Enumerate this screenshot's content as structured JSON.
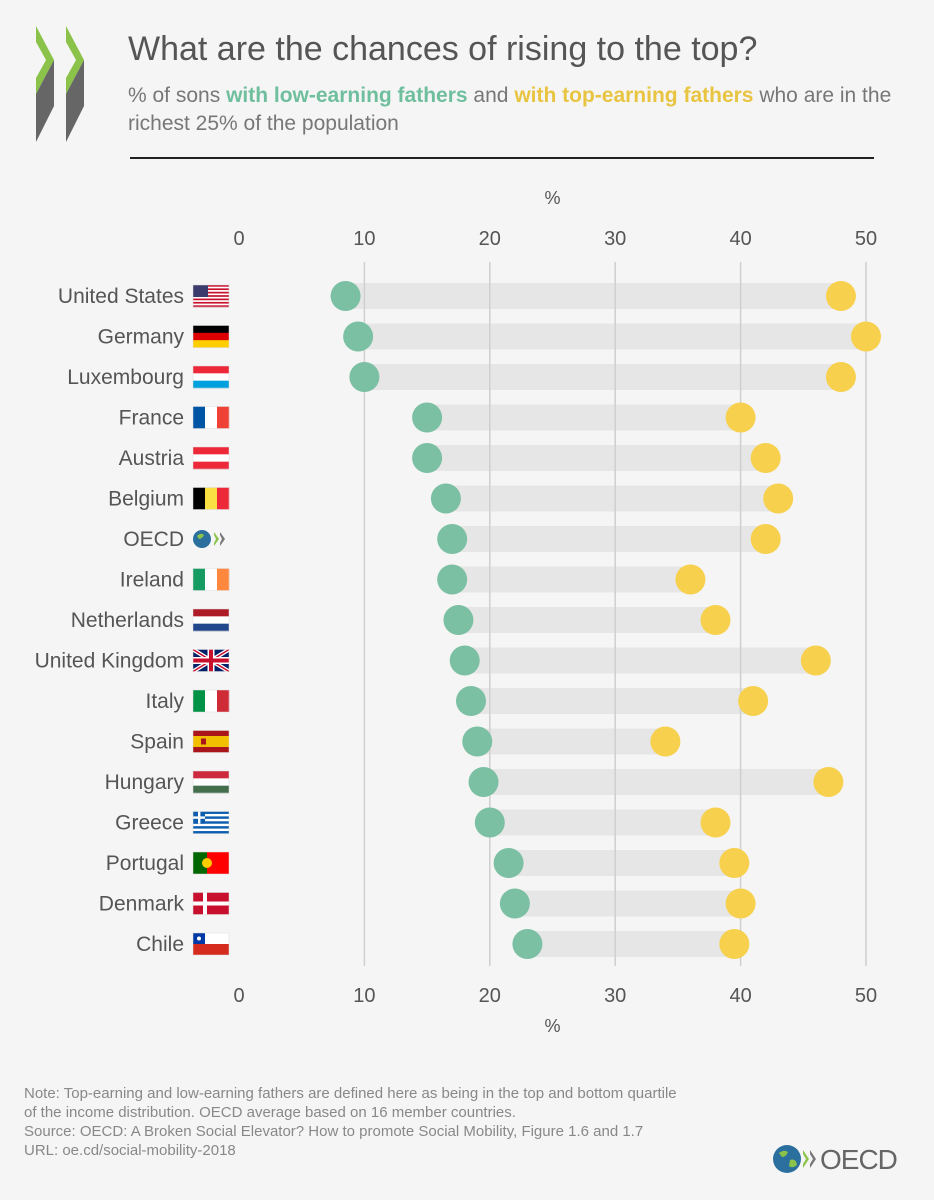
{
  "header": {
    "title": "What are the chances of rising to the top?",
    "subtitle": {
      "prefix": "% of sons ",
      "low": "with low-earning fathers",
      "middle": " and ",
      "top": "with top-earning fathers",
      "suffix": " who are in the richest 25% of the population"
    }
  },
  "colors": {
    "low": "#7cc0a4",
    "top": "#f7d04e",
    "bar": "#e6e6e6",
    "grid": "#cfcfcf",
    "text": "#555555"
  },
  "chart_data": {
    "type": "dumbbell",
    "unit_label": "%",
    "x_ticks": [
      0,
      10,
      20,
      30,
      40,
      50
    ],
    "xlim": [
      0,
      50
    ],
    "grid": true,
    "series": [
      {
        "name": "with low-earning fathers",
        "key": "low"
      },
      {
        "name": "with top-earning fathers",
        "key": "top"
      }
    ],
    "categories": [
      {
        "country": "United States",
        "flag": "us-flag",
        "low": 8.5,
        "top": 48
      },
      {
        "country": "Germany",
        "flag": "germany-flag",
        "low": 9.5,
        "top": 50
      },
      {
        "country": "Luxembourg",
        "flag": "luxembourg-flag",
        "low": 10,
        "top": 48
      },
      {
        "country": "France",
        "flag": "france-flag",
        "low": 15,
        "top": 40
      },
      {
        "country": "Austria",
        "flag": "austria-flag",
        "low": 15,
        "top": 42
      },
      {
        "country": "Belgium",
        "flag": "belgium-flag",
        "low": 16.5,
        "top": 43
      },
      {
        "country": "OECD",
        "flag": "oecd-logo",
        "low": 17,
        "top": 42
      },
      {
        "country": "Ireland",
        "flag": "ireland-flag",
        "low": 17,
        "top": 36
      },
      {
        "country": "Netherlands",
        "flag": "netherlands-flag",
        "low": 17.5,
        "top": 38
      },
      {
        "country": "United Kingdom",
        "flag": "uk-flag",
        "low": 18,
        "top": 46
      },
      {
        "country": "Italy",
        "flag": "italy-flag",
        "low": 18.5,
        "top": 41
      },
      {
        "country": "Spain",
        "flag": "spain-flag",
        "low": 19,
        "top": 34
      },
      {
        "country": "Hungary",
        "flag": "hungary-flag",
        "low": 19.5,
        "top": 47
      },
      {
        "country": "Greece",
        "flag": "greece-flag",
        "low": 20,
        "top": 38
      },
      {
        "country": "Portugal",
        "flag": "portugal-flag",
        "low": 21.5,
        "top": 39.5
      },
      {
        "country": "Denmark",
        "flag": "denmark-flag",
        "low": 22,
        "top": 40
      },
      {
        "country": "Chile",
        "flag": "chile-flag",
        "low": 23,
        "top": 39.5
      }
    ]
  },
  "footnote": {
    "note_1": "Note: Top-earning and low-earning fathers are defined here as being in the top and bottom quartile",
    "note_2": "of the income distribution. OECD average based on 16 member countries.",
    "source": "Source: OECD: A Broken Social Elevator? How to promote Social Mobility, Figure 1.6 and 1.7",
    "url": "URL: oe.cd/social-mobility-2018"
  },
  "brand": {
    "name": "OECD"
  }
}
